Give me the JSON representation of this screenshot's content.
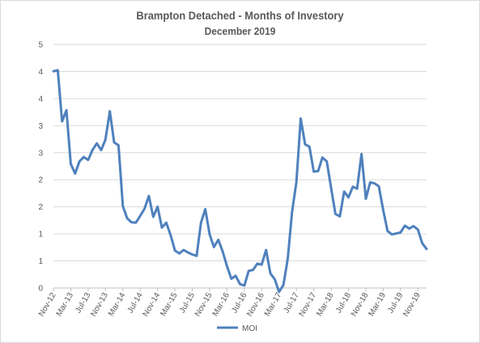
{
  "chart_data": {
    "type": "line",
    "title": "Brampton Detached - Months of Investory",
    "subtitle": "December 2019",
    "xlabel": "",
    "ylabel": "",
    "ylim": [
      0,
      5
    ],
    "y_ticks": [
      "0",
      "1",
      "1",
      "2",
      "2",
      "3",
      "3",
      "4",
      "4",
      "5"
    ],
    "x_ticks": [
      "Nov-12",
      "Mar-13",
      "Jul-13",
      "Nov-13",
      "Mar-14",
      "Jul-14",
      "Nov-14",
      "Mar-15",
      "Jul-15",
      "Nov-15",
      "Mar-16",
      "Jul-16",
      "Nov-16",
      "Mar-17",
      "Jul-17",
      "Nov-17",
      "Mar-18",
      "Jul-18",
      "Nov-18",
      "Mar-19",
      "Jul-19",
      "Nov-19"
    ],
    "grid": "horizontal",
    "legend": "bottom",
    "series": [
      {
        "name": "MOI",
        "color": "#4f81bd",
        "values": [
          4.45,
          4.47,
          3.42,
          3.65,
          2.55,
          2.35,
          2.6,
          2.69,
          2.63,
          2.83,
          2.97,
          2.83,
          3.05,
          3.63,
          2.99,
          2.93,
          1.68,
          1.43,
          1.35,
          1.34,
          1.48,
          1.63,
          1.89,
          1.46,
          1.67,
          1.24,
          1.34,
          1.09,
          0.77,
          0.71,
          0.78,
          0.73,
          0.69,
          0.66,
          1.34,
          1.62,
          1.1,
          0.84,
          0.99,
          0.75,
          0.45,
          0.19,
          0.25,
          0.08,
          0.05,
          0.35,
          0.37,
          0.5,
          0.48,
          0.78,
          0.3,
          0.18,
          -0.08,
          0.06,
          0.6,
          1.56,
          2.18,
          3.48,
          2.95,
          2.9,
          2.39,
          2.4,
          2.68,
          2.6,
          2.05,
          1.52,
          1.47,
          1.98,
          1.86,
          2.08,
          2.04,
          2.75,
          1.83,
          2.17,
          2.15,
          2.09,
          1.6,
          1.17,
          1.1,
          1.12,
          1.14,
          1.28,
          1.22,
          1.27,
          1.2,
          0.92,
          0.8
        ]
      }
    ]
  }
}
